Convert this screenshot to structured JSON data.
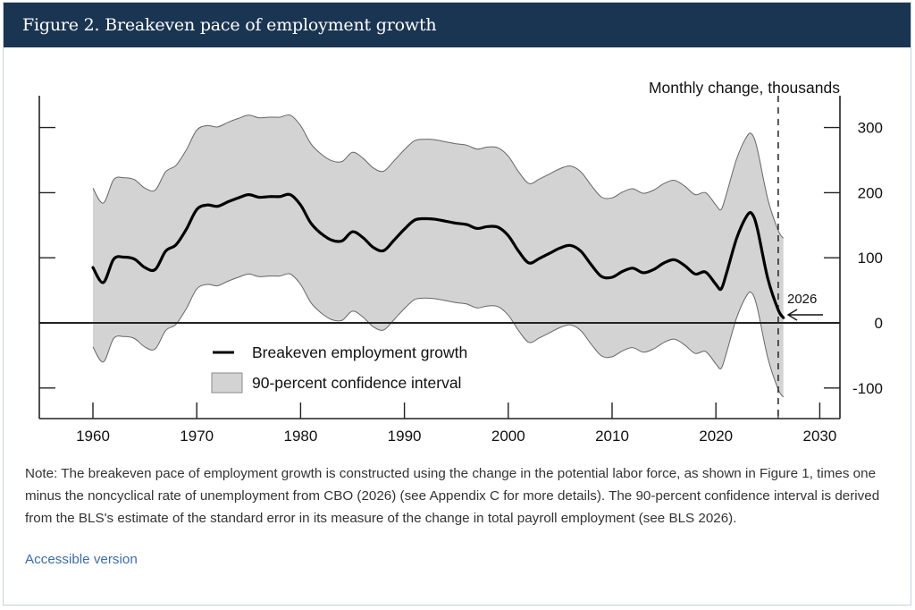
{
  "header": {
    "title": "Figure 2. Breakeven pace of employment growth"
  },
  "note": "Note: The breakeven pace of employment growth is constructed using the change in the potential labor force, as shown in Figure 1, times one minus the noncyclical rate of unemployment from CBO (2026) (see Appendix C for more details). The 90-percent confidence interval is derived from the BLS's estimate of the standard error in its measure of the change in total payroll employment (see BLS 2026).",
  "accessible_link": "Accessible version",
  "colors": {
    "header_bg": "#1a3552",
    "ci_fill": "#d3d3d3",
    "line": "#000000",
    "link": "#3d6da8"
  },
  "chart_data": {
    "type": "line",
    "title": "Figure 2. Breakeven pace of employment growth",
    "ylabel": "Monthly change, thousands",
    "xlabel": "",
    "xlim": [
      1955,
      2032
    ],
    "ylim": [
      -150,
      350
    ],
    "x_ticks": [
      1960,
      1970,
      1980,
      1990,
      2000,
      2010,
      2020,
      2030
    ],
    "x_tick_labels": [
      "1960",
      "1970",
      "1980",
      "1990",
      "2000",
      "2010",
      "2020",
      "2030"
    ],
    "y_ticks": [
      -100,
      0,
      100,
      200,
      300
    ],
    "y_tick_labels": [
      "-100",
      "0",
      "100",
      "200",
      "300"
    ],
    "y_axis_side": "right",
    "grid": false,
    "reference_line": {
      "y": 0
    },
    "vertical_marker": {
      "x": 2026,
      "style": "dashed"
    },
    "annotation": {
      "text": "2026",
      "x": 2026.5,
      "y": 8,
      "arrow": "left"
    },
    "legend": {
      "placement": "bottom-center",
      "entries": [
        "Breakeven employment growth",
        "90-percent confidence interval"
      ]
    },
    "x": [
      1960,
      1961,
      1962,
      1963,
      1964,
      1965,
      1966,
      1967,
      1968,
      1969,
      1970,
      1971,
      1972,
      1973,
      1974,
      1975,
      1976,
      1977,
      1978,
      1979,
      1980,
      1981,
      1982,
      1983,
      1984,
      1985,
      1986,
      1987,
      1988,
      1989,
      1990,
      1991,
      1992,
      1993,
      1994,
      1995,
      1996,
      1997,
      1998,
      1999,
      2000,
      2001,
      2002,
      2003,
      2004,
      2005,
      2006,
      2007,
      2008,
      2009,
      2010,
      2011,
      2012,
      2013,
      2014,
      2015,
      2016,
      2017,
      2018,
      2019,
      2020,
      2020.5,
      2021,
      2022,
      2023,
      2023.5,
      2024,
      2025,
      2026,
      2026.5
    ],
    "series": [
      {
        "name": "Breakeven employment growth",
        "values": [
          85,
          62,
          98,
          101,
          98,
          85,
          82,
          110,
          120,
          144,
          174,
          181,
          179,
          186,
          192,
          197,
          193,
          194,
          194,
          197,
          181,
          153,
          137,
          127,
          126,
          140,
          131,
          116,
          111,
          127,
          144,
          158,
          160,
          159,
          156,
          153,
          151,
          145,
          148,
          147,
          134,
          110,
          92,
          99,
          107,
          115,
          119,
          110,
          89,
          71,
          70,
          79,
          84,
          77,
          82,
          92,
          97,
          88,
          75,
          78,
          59,
          52,
          75,
          130,
          165,
          167,
          144,
          68,
          20,
          8
        ]
      },
      {
        "name": "90-percent confidence interval",
        "type": "band",
        "half_width": 122
      }
    ]
  }
}
